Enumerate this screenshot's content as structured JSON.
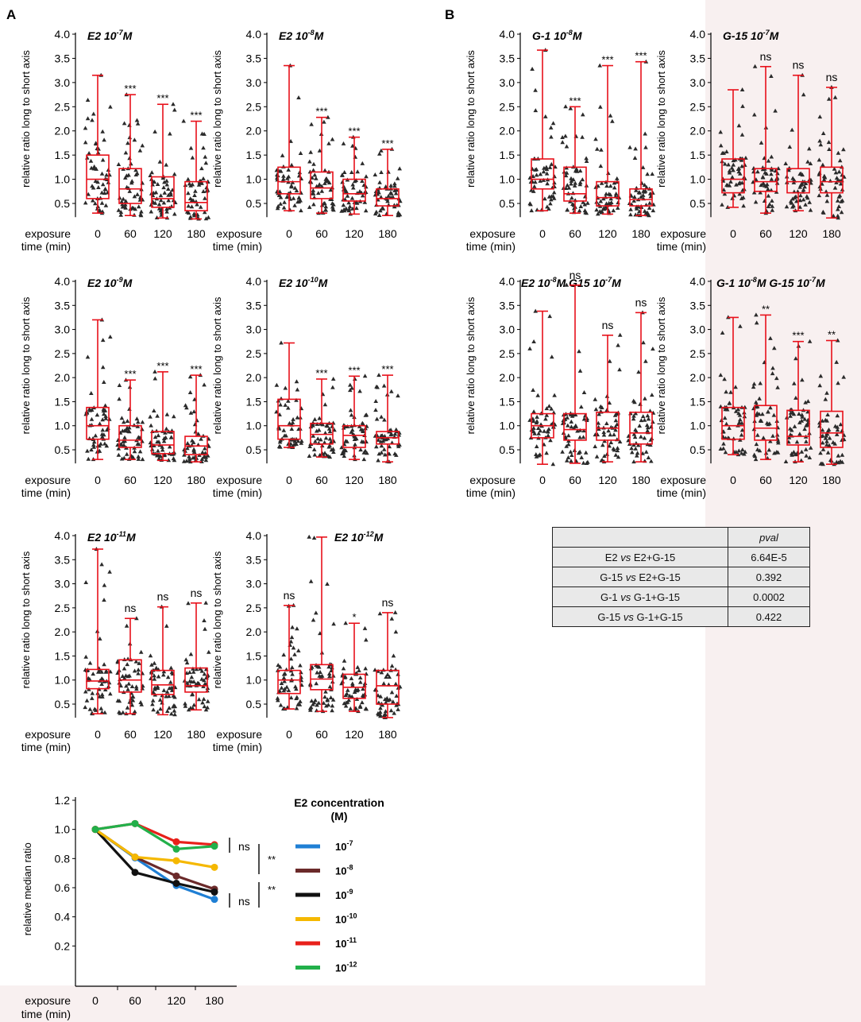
{
  "colors": {
    "box": "#e8101a",
    "points": "#2a2a2a",
    "right_panel_bg": "#f8f0f0",
    "table_bg": "#e9e9e9"
  },
  "panel_labels": {
    "a": "A",
    "b": "B"
  },
  "boxplots": {
    "ylabel": "relative ratio long to short axis",
    "xlabel_line1": "exposure",
    "xlabel_line2": "time (min)",
    "categories": [
      "0",
      "60",
      "120",
      "180"
    ],
    "yticks": [
      "4.0",
      "3.5",
      "3.0",
      "2.5",
      "2.0",
      "1.5",
      "1.0",
      "0.5"
    ]
  },
  "chart_data": [
    {
      "id": "A1",
      "type": "box",
      "title_base": "E2 10",
      "title_sup": "-7",
      "title_suffix": "M",
      "title_x_offset": 0,
      "ylim": [
        0.25,
        4.0
      ],
      "boxes": [
        {
          "min": 0.3,
          "q1": 0.6,
          "median": 1.0,
          "q3": 1.5,
          "max": 3.15
        },
        {
          "min": 0.25,
          "q1": 0.5,
          "median": 0.8,
          "q3": 1.22,
          "max": 2.75
        },
        {
          "min": 0.2,
          "q1": 0.42,
          "median": 0.6,
          "q3": 1.05,
          "max": 2.55
        },
        {
          "min": 0.18,
          "q1": 0.35,
          "median": 0.52,
          "q3": 0.95,
          "max": 2.2
        }
      ],
      "sig": [
        "",
        "***",
        "***",
        "***"
      ]
    },
    {
      "id": "A2",
      "type": "box",
      "title_base": "E2 10",
      "title_sup": "-8",
      "title_suffix": "M",
      "title_x_offset": 0,
      "ylim": [
        0.25,
        4.0
      ],
      "boxes": [
        {
          "min": 0.35,
          "q1": 0.7,
          "median": 0.95,
          "q3": 1.25,
          "max": 3.35
        },
        {
          "min": 0.3,
          "q1": 0.6,
          "median": 0.82,
          "q3": 1.15,
          "max": 2.28
        },
        {
          "min": 0.28,
          "q1": 0.55,
          "median": 0.7,
          "q3": 1.0,
          "max": 1.87
        },
        {
          "min": 0.25,
          "q1": 0.45,
          "median": 0.6,
          "q3": 0.8,
          "max": 1.62
        }
      ],
      "sig": [
        "",
        "***",
        "***",
        "***"
      ]
    },
    {
      "id": "A3",
      "type": "box",
      "title_base": "E2 10",
      "title_sup": "-9",
      "title_suffix": "M",
      "title_x_offset": 0,
      "ylim": [
        0.25,
        4.0
      ],
      "boxes": [
        {
          "min": 0.3,
          "q1": 0.72,
          "median": 1.0,
          "q3": 1.38,
          "max": 3.2
        },
        {
          "min": 0.3,
          "q1": 0.55,
          "median": 0.7,
          "q3": 1.0,
          "max": 1.95
        },
        {
          "min": 0.28,
          "q1": 0.42,
          "median": 0.6,
          "q3": 0.88,
          "max": 2.12
        },
        {
          "min": 0.25,
          "q1": 0.4,
          "median": 0.58,
          "q3": 0.78,
          "max": 2.05
        }
      ],
      "sig": [
        "",
        "***",
        "***",
        "***"
      ]
    },
    {
      "id": "A4",
      "type": "box",
      "title_base": "E2 10",
      "title_sup": "-10",
      "title_suffix": "M",
      "title_x_offset": 0,
      "ylim": [
        0.25,
        4.0
      ],
      "boxes": [
        {
          "min": 0.55,
          "q1": 0.72,
          "median": 1.0,
          "q3": 1.55,
          "max": 2.72
        },
        {
          "min": 0.35,
          "q1": 0.62,
          "median": 0.82,
          "q3": 1.05,
          "max": 1.97
        },
        {
          "min": 0.3,
          "q1": 0.55,
          "median": 0.8,
          "q3": 1.0,
          "max": 2.03
        },
        {
          "min": 0.25,
          "q1": 0.62,
          "median": 0.75,
          "q3": 0.88,
          "max": 2.05
        }
      ],
      "sig": [
        "",
        "***",
        "***",
        "***"
      ]
    },
    {
      "id": "A5",
      "type": "box",
      "title_base": "E2 10",
      "title_sup": "-11",
      "title_suffix": "M",
      "title_x_offset": 0,
      "ylim": [
        0.25,
        4.0
      ],
      "boxes": [
        {
          "min": 0.3,
          "q1": 0.82,
          "median": 0.98,
          "q3": 1.22,
          "max": 3.72
        },
        {
          "min": 0.3,
          "q1": 0.75,
          "median": 1.0,
          "q3": 1.42,
          "max": 2.28
        },
        {
          "min": 0.28,
          "q1": 0.7,
          "median": 0.9,
          "q3": 1.2,
          "max": 2.52
        },
        {
          "min": 0.38,
          "q1": 0.75,
          "median": 0.88,
          "q3": 1.25,
          "max": 2.6
        }
      ],
      "sig": [
        "",
        "ns",
        "ns",
        "ns"
      ]
    },
    {
      "id": "A6",
      "type": "box",
      "title_base": "E2 10",
      "title_sup": "-12",
      "title_suffix": "M",
      "title_x_offset": 70,
      "ylim": [
        0.25,
        4.0
      ],
      "boxes": [
        {
          "min": 0.4,
          "q1": 0.72,
          "median": 1.0,
          "q3": 1.2,
          "max": 2.55
        },
        {
          "min": 0.35,
          "q1": 0.8,
          "median": 1.02,
          "q3": 1.32,
          "max": 3.97
        },
        {
          "min": 0.35,
          "q1": 0.62,
          "median": 0.85,
          "q3": 1.12,
          "max": 2.18
        },
        {
          "min": 0.22,
          "q1": 0.5,
          "median": 0.88,
          "q3": 1.2,
          "max": 2.4
        }
      ],
      "sig": [
        "ns",
        "",
        "*",
        "ns"
      ]
    },
    {
      "id": "B1",
      "type": "box",
      "title_base": "G-1 10",
      "title_sup": "-8",
      "title_suffix": "M",
      "title_x_offset": 0,
      "ylim": [
        0.25,
        4.0
      ],
      "boxes": [
        {
          "min": 0.35,
          "q1": 0.8,
          "median": 1.0,
          "q3": 1.42,
          "max": 3.67
        },
        {
          "min": 0.3,
          "q1": 0.55,
          "median": 0.7,
          "q3": 1.25,
          "max": 2.5
        },
        {
          "min": 0.28,
          "q1": 0.45,
          "median": 0.62,
          "q3": 0.95,
          "max": 3.35
        },
        {
          "min": 0.25,
          "q1": 0.45,
          "median": 0.58,
          "q3": 0.8,
          "max": 3.43
        }
      ],
      "sig": [
        "",
        "***",
        "***",
        "***"
      ]
    },
    {
      "id": "B2",
      "type": "box",
      "title_base": "G-15 10",
      "title_sup": "-7",
      "title_suffix": "M",
      "title_x_offset": 0,
      "ylim": [
        0.25,
        4.0
      ],
      "boxes": [
        {
          "min": 0.42,
          "q1": 0.72,
          "median": 1.0,
          "q3": 1.42,
          "max": 2.85
        },
        {
          "min": 0.3,
          "q1": 0.75,
          "median": 0.95,
          "q3": 1.22,
          "max": 3.33
        },
        {
          "min": 0.35,
          "q1": 0.72,
          "median": 0.95,
          "q3": 1.22,
          "max": 3.15
        },
        {
          "min": 0.2,
          "q1": 0.72,
          "median": 0.95,
          "q3": 1.25,
          "max": 2.9
        }
      ],
      "sig": [
        "",
        "ns",
        "ns",
        "ns"
      ]
    },
    {
      "id": "B3",
      "type": "box",
      "title_base": "E2 10",
      "title_sup": "-8",
      "title_suffix": "M G15 10",
      "title_sup2": "-7",
      "title_suffix2": "M",
      "title_x_offset": -14,
      "ylim": [
        0.25,
        4.0
      ],
      "boxes": [
        {
          "min": 0.2,
          "q1": 0.75,
          "median": 1.0,
          "q3": 1.25,
          "max": 3.38
        },
        {
          "min": 0.22,
          "q1": 0.7,
          "median": 0.92,
          "q3": 1.25,
          "max": 3.92
        },
        {
          "min": 0.25,
          "q1": 0.7,
          "median": 0.95,
          "q3": 1.28,
          "max": 2.88
        },
        {
          "min": 0.25,
          "q1": 0.62,
          "median": 0.85,
          "q3": 1.28,
          "max": 3.35
        }
      ],
      "sig": [
        "",
        "ns",
        "ns",
        "ns"
      ]
    },
    {
      "id": "B4",
      "type": "box",
      "title_base": "G-1 10",
      "title_sup": "-8",
      "title_suffix": "M G-15 10",
      "title_sup2": "-7",
      "title_suffix2": "M",
      "title_x_offset": -8,
      "ylim": [
        0.25,
        4.0
      ],
      "boxes": [
        {
          "min": 0.4,
          "q1": 0.72,
          "median": 1.0,
          "q3": 1.38,
          "max": 3.25
        },
        {
          "min": 0.3,
          "q1": 0.7,
          "median": 0.95,
          "q3": 1.42,
          "max": 3.3
        },
        {
          "min": 0.25,
          "q1": 0.6,
          "median": 0.78,
          "q3": 1.32,
          "max": 2.75
        },
        {
          "min": 0.2,
          "q1": 0.55,
          "median": 0.85,
          "q3": 1.3,
          "max": 2.77
        }
      ],
      "sig": [
        "",
        "**",
        "***",
        "**"
      ]
    },
    {
      "id": "C",
      "type": "line",
      "ylabel": "relative median ratio",
      "x": [
        0,
        60,
        120,
        180
      ],
      "xtick_labels": [
        "0",
        "60",
        "120",
        "180"
      ],
      "yticks": [
        "1.2",
        "1.0",
        "0.8",
        "0.6",
        "0.4",
        "0.2"
      ],
      "ylim": [
        0.0,
        1.2
      ],
      "legend_title_line1": "E2 concentration",
      "legend_title_line2": "(M)",
      "series": [
        {
          "base": "10",
          "exp": "-7",
          "color": "#1f7fd4",
          "values": [
            1.0,
            0.805,
            0.615,
            0.52
          ]
        },
        {
          "base": "10",
          "exp": "-8",
          "color": "#6b2a2a",
          "values": [
            1.0,
            0.81,
            0.68,
            0.59
          ]
        },
        {
          "base": "10",
          "exp": "-9",
          "color": "#111111",
          "values": [
            1.0,
            0.705,
            0.63,
            0.57
          ]
        },
        {
          "base": "10",
          "exp": "-10",
          "color": "#f5b800",
          "values": [
            1.0,
            0.81,
            0.785,
            0.74
          ]
        },
        {
          "base": "10",
          "exp": "-11",
          "color": "#e8201a",
          "values": [
            1.0,
            1.04,
            0.915,
            0.895
          ]
        },
        {
          "base": "10",
          "exp": "-12",
          "color": "#22b04a",
          "values": [
            1.0,
            1.04,
            0.865,
            0.885
          ]
        }
      ],
      "annotations": [
        "ns",
        "**",
        "ns",
        "**"
      ]
    }
  ],
  "table": {
    "header": [
      "",
      "pval"
    ],
    "rows": [
      {
        "left": "E2",
        "vs": "vs",
        "right": "E2+G-15",
        "pval": "6.64E-5"
      },
      {
        "left": "G-15",
        "vs": "vs",
        "right": "E2+G-15",
        "pval": "0.392"
      },
      {
        "left": "G-1",
        "vs": "vs",
        "right": "G-1+G-15",
        "pval": "0.0002"
      },
      {
        "left": "G-15",
        "vs": "vs",
        "right": "G-1+G-15",
        "pval": "0.422"
      }
    ]
  }
}
